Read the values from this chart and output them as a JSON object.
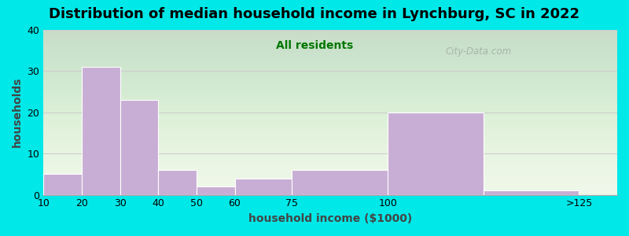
{
  "title": "Distribution of median household income in Lynchburg, SC in 2022",
  "subtitle": "All residents",
  "xlabel": "household income ($1000)",
  "ylabel": "households",
  "bar_lefts": [
    10,
    20,
    30,
    40,
    50,
    60,
    75,
    100,
    125
  ],
  "bar_widths": [
    10,
    10,
    10,
    10,
    10,
    15,
    25,
    25,
    25
  ],
  "bar_heights": [
    5,
    31,
    23,
    6,
    2,
    4,
    6,
    20,
    1
  ],
  "bar_color": "#c8aed4",
  "bar_edgecolor": "#ffffff",
  "xtick_positions": [
    10,
    20,
    30,
    40,
    50,
    60,
    75,
    100,
    150
  ],
  "xtick_labels": [
    "10",
    "20",
    "30",
    "40",
    "50",
    "60",
    "75",
    "100",
    ">125"
  ],
  "xlim": [
    10,
    160
  ],
  "ylim": [
    0,
    40
  ],
  "yticks": [
    0,
    10,
    20,
    30,
    40
  ],
  "background_color": "#00e8e8",
  "plot_bg_color": "#eef7e8",
  "title_fontsize": 13,
  "subtitle_fontsize": 10,
  "axis_label_fontsize": 10,
  "tick_fontsize": 9,
  "watermark_text": "City-Data.com",
  "title_color": "#000000",
  "subtitle_color": "#007700",
  "axis_label_color": "#444444",
  "grid_color": "#cccccc",
  "grid_linewidth": 0.8
}
